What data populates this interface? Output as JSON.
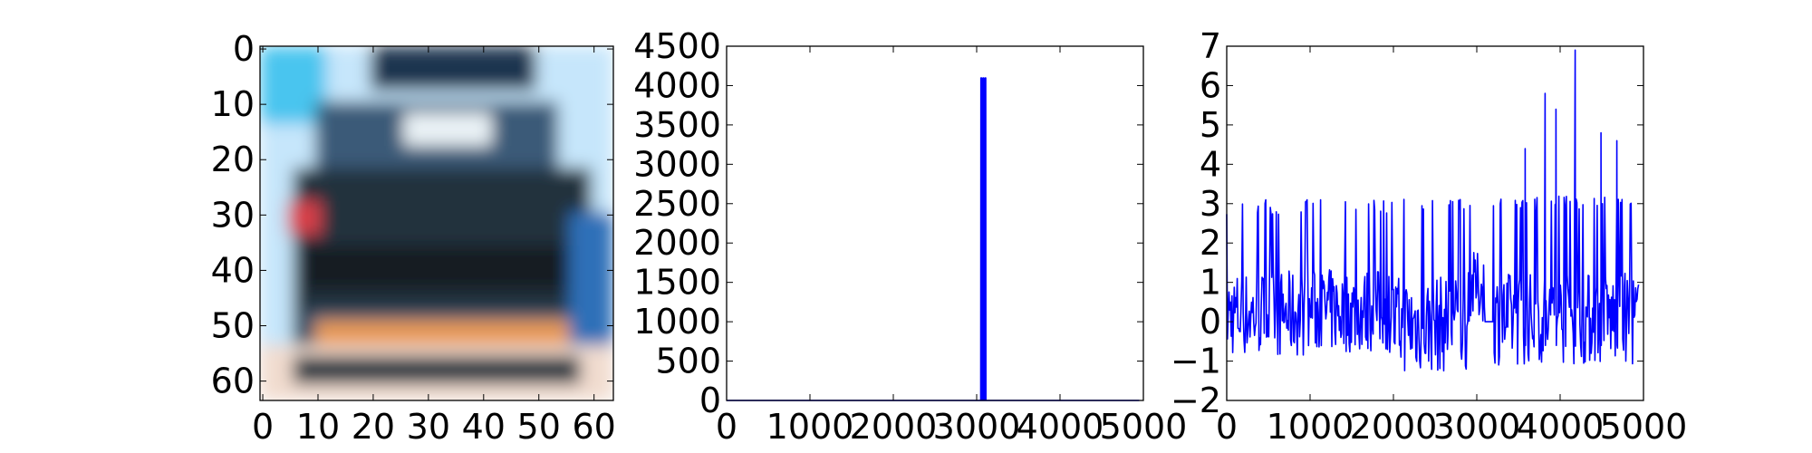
{
  "chart_data": [
    {
      "type": "heatmap",
      "title": "",
      "xlabel": "",
      "ylabel": "",
      "xlim": [
        0,
        63
      ],
      "ylim": [
        63,
        0
      ],
      "xticks": [
        "0",
        "10",
        "20",
        "30",
        "40",
        "50",
        "60"
      ],
      "yticks": [
        "0",
        "10",
        "20",
        "30",
        "40",
        "50",
        "60"
      ],
      "palette": {
        "sky": "#c6e6fb",
        "sky_bright": "#48c5ef",
        "roof": "#1f3550",
        "window": "#eaf2f6",
        "cab": "#3b5a78",
        "body_dark": "#22303c",
        "grille": "#141b22",
        "stripe_orange": "#e89a55",
        "stripe_border": "#3d5d7a",
        "red_blob": "#d8414a",
        "ground": "#f1dccf",
        "edge_blue": "#2f6fb8"
      }
    },
    {
      "type": "line",
      "title": "",
      "xlabel": "",
      "ylabel": "",
      "xlim": [
        0,
        5000
      ],
      "ylim": [
        0,
        4500
      ],
      "xticks": [
        "0",
        "1000",
        "2000",
        "3000",
        "4000",
        "5000"
      ],
      "yticks": [
        "0",
        "500",
        "1000",
        "1500",
        "2000",
        "2500",
        "3000",
        "3500",
        "4000",
        "4500"
      ],
      "color": "#0000ff",
      "baseline": 0,
      "spikes": [
        {
          "x": 3055,
          "y": 4096
        },
        {
          "x": 3080,
          "y": 4096
        },
        {
          "x": 3105,
          "y": 4096
        }
      ],
      "n_points": 4950
    },
    {
      "type": "line",
      "title": "",
      "xlabel": "",
      "ylabel": "",
      "xlim": [
        0,
        5000
      ],
      "ylim": [
        -2,
        7
      ],
      "xticks": [
        "0",
        "1000",
        "2000",
        "3000",
        "4000",
        "5000"
      ],
      "yticks": [
        "−2",
        "−1",
        "0",
        "1",
        "2",
        "3",
        "4",
        "5",
        "6",
        "7"
      ],
      "color": "#0000ff",
      "n_points": 4950,
      "segments": [
        {
          "x_start": 0,
          "x_end": 1000,
          "low": -0.9,
          "high": 3.1
        },
        {
          "x_start": 1000,
          "x_end": 2000,
          "low": -0.8,
          "high": 3.1
        },
        {
          "x_start": 2000,
          "x_end": 2900,
          "low": -1.3,
          "high": 3.2
        },
        {
          "x_start": 2900,
          "x_end": 3100,
          "low": 0.0,
          "high": 3.2
        },
        {
          "x_start": 3100,
          "x_end": 3200,
          "low": 0.0,
          "high": 0.0
        },
        {
          "x_start": 3200,
          "x_end": 4950,
          "low": -1.1,
          "high": 6.9
        }
      ],
      "peaks": [
        {
          "x": 3580,
          "y": 4.4
        },
        {
          "x": 3820,
          "y": 5.8
        },
        {
          "x": 3950,
          "y": 5.4
        },
        {
          "x": 4180,
          "y": 6.9
        },
        {
          "x": 4490,
          "y": 4.8
        },
        {
          "x": 4680,
          "y": 4.6
        }
      ]
    }
  ]
}
